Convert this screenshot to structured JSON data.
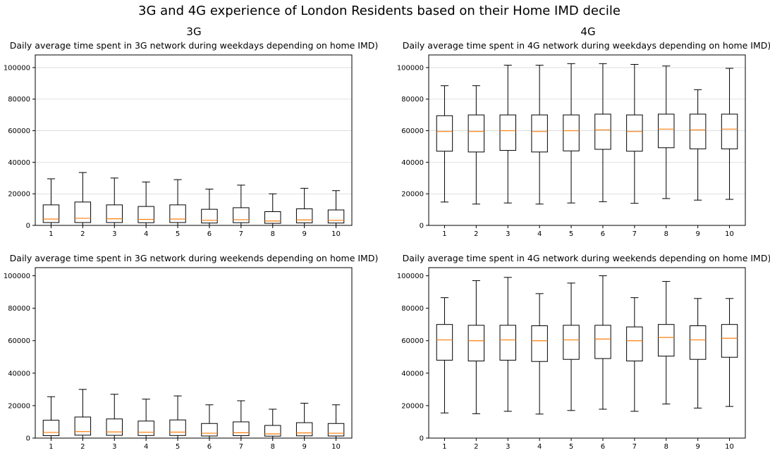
{
  "figure": {
    "suptitle": "3G and 4G experience of London Residents based on their Home IMD decile",
    "column_titles": [
      "3G",
      "4G"
    ]
  },
  "chart_data": [
    {
      "type": "box",
      "title": "Daily average time spent in 3G network during weekdays depending on home IMD)",
      "xlabel": "",
      "ylabel": "",
      "categories": [
        "1",
        "2",
        "3",
        "4",
        "5",
        "6",
        "7",
        "8",
        "9",
        "10"
      ],
      "ylim": [
        0,
        108000
      ],
      "yticks": [
        0,
        20000,
        40000,
        60000,
        80000,
        100000
      ],
      "grid": "y",
      "boxes": [
        {
          "whislo": 0,
          "q1": 1800,
          "med": 4000,
          "q3": 13000,
          "whishi": 29500
        },
        {
          "whislo": 0,
          "q1": 1800,
          "med": 4500,
          "q3": 14800,
          "whishi": 33500
        },
        {
          "whislo": 0,
          "q1": 1800,
          "med": 4200,
          "q3": 13000,
          "whishi": 30000
        },
        {
          "whislo": 0,
          "q1": 1700,
          "med": 3800,
          "q3": 12000,
          "whishi": 27500
        },
        {
          "whislo": 0,
          "q1": 1800,
          "med": 4000,
          "q3": 13000,
          "whishi": 29000
        },
        {
          "whislo": 0,
          "q1": 1500,
          "med": 3200,
          "q3": 10200,
          "whishi": 23000
        },
        {
          "whislo": 0,
          "q1": 1700,
          "med": 3600,
          "q3": 11200,
          "whishi": 25500
        },
        {
          "whislo": 0,
          "q1": 1300,
          "med": 2800,
          "q3": 8700,
          "whishi": 20000
        },
        {
          "whislo": 0,
          "q1": 1600,
          "med": 3500,
          "q3": 10500,
          "whishi": 23500
        },
        {
          "whislo": 0,
          "q1": 1500,
          "med": 3200,
          "q3": 9800,
          "whishi": 22000
        }
      ]
    },
    {
      "type": "box",
      "title": "Daily average time spent in 4G network during weekdays depending on home IMD)",
      "xlabel": "",
      "ylabel": "",
      "categories": [
        "1",
        "2",
        "3",
        "4",
        "5",
        "6",
        "7",
        "8",
        "9",
        "10"
      ],
      "ylim": [
        0,
        108000
      ],
      "yticks": [
        0,
        20000,
        40000,
        60000,
        80000,
        100000
      ],
      "grid": "y",
      "boxes": [
        {
          "whislo": 14800,
          "q1": 47000,
          "med": 59500,
          "q3": 69500,
          "whishi": 88500
        },
        {
          "whislo": 13500,
          "q1": 46500,
          "med": 59500,
          "q3": 70000,
          "whishi": 88500
        },
        {
          "whislo": 14200,
          "q1": 47500,
          "med": 60000,
          "q3": 70000,
          "whishi": 101500
        },
        {
          "whislo": 13500,
          "q1": 46500,
          "med": 59500,
          "q3": 70000,
          "whishi": 101500
        },
        {
          "whislo": 14200,
          "q1": 47200,
          "med": 60000,
          "q3": 70000,
          "whishi": 102500
        },
        {
          "whislo": 15000,
          "q1": 48200,
          "med": 60500,
          "q3": 70500,
          "whishi": 102500
        },
        {
          "whislo": 14000,
          "q1": 47000,
          "med": 59500,
          "q3": 70000,
          "whishi": 102000
        },
        {
          "whislo": 17000,
          "q1": 49200,
          "med": 61000,
          "q3": 70500,
          "whishi": 101000
        },
        {
          "whislo": 16000,
          "q1": 48500,
          "med": 60500,
          "q3": 70500,
          "whishi": 86000
        },
        {
          "whislo": 16500,
          "q1": 48500,
          "med": 61000,
          "q3": 70500,
          "whishi": 99500
        }
      ]
    },
    {
      "type": "box",
      "title": "Daily average time spent in 3G network during weekends depending on home IMD)",
      "xlabel": "",
      "ylabel": "",
      "categories": [
        "1",
        "2",
        "3",
        "4",
        "5",
        "6",
        "7",
        "8",
        "9",
        "10"
      ],
      "ylim": [
        0,
        105000
      ],
      "yticks": [
        0,
        20000,
        40000,
        60000,
        80000,
        100000
      ],
      "grid": "none",
      "boxes": [
        {
          "whislo": 0,
          "q1": 1500,
          "med": 3500,
          "q3": 11000,
          "whishi": 25500
        },
        {
          "whislo": 0,
          "q1": 1800,
          "med": 4000,
          "q3": 13000,
          "whishi": 30000
        },
        {
          "whislo": 0,
          "q1": 1700,
          "med": 3800,
          "q3": 11800,
          "whishi": 27000
        },
        {
          "whislo": 0,
          "q1": 1600,
          "med": 3600,
          "q3": 10500,
          "whishi": 24000
        },
        {
          "whislo": 0,
          "q1": 1600,
          "med": 3700,
          "q3": 11200,
          "whishi": 26000
        },
        {
          "whislo": 0,
          "q1": 1300,
          "med": 3000,
          "q3": 9000,
          "whishi": 20500
        },
        {
          "whislo": 0,
          "q1": 1500,
          "med": 3300,
          "q3": 10000,
          "whishi": 23000
        },
        {
          "whislo": 0,
          "q1": 1200,
          "med": 2600,
          "q3": 7800,
          "whishi": 17800
        },
        {
          "whislo": 0,
          "q1": 1400,
          "med": 3200,
          "q3": 9500,
          "whishi": 21500
        },
        {
          "whislo": 0,
          "q1": 1300,
          "med": 3000,
          "q3": 9000,
          "whishi": 20500
        }
      ]
    },
    {
      "type": "box",
      "title": "Daily average time spent in 4G network during weekends depending on home IMD)",
      "xlabel": "",
      "ylabel": "",
      "categories": [
        "1",
        "2",
        "3",
        "4",
        "5",
        "6",
        "7",
        "8",
        "9",
        "10"
      ],
      "ylim": [
        0,
        105000
      ],
      "yticks": [
        0,
        20000,
        40000,
        60000,
        80000,
        100000
      ],
      "grid": "none",
      "boxes": [
        {
          "whislo": 15500,
          "q1": 48000,
          "med": 60500,
          "q3": 70000,
          "whishi": 86500
        },
        {
          "whislo": 15000,
          "q1": 47500,
          "med": 60000,
          "q3": 69500,
          "whishi": 97000
        },
        {
          "whislo": 16500,
          "q1": 48000,
          "med": 60500,
          "q3": 69500,
          "whishi": 99000
        },
        {
          "whislo": 14800,
          "q1": 47200,
          "med": 60000,
          "q3": 69200,
          "whishi": 89000
        },
        {
          "whislo": 17000,
          "q1": 48500,
          "med": 60500,
          "q3": 69500,
          "whishi": 95500
        },
        {
          "whislo": 17800,
          "q1": 49000,
          "med": 61000,
          "q3": 69500,
          "whishi": 100000
        },
        {
          "whislo": 16500,
          "q1": 47500,
          "med": 60000,
          "q3": 68500,
          "whishi": 86500
        },
        {
          "whislo": 21000,
          "q1": 50500,
          "med": 62000,
          "q3": 70000,
          "whishi": 96500
        },
        {
          "whislo": 18500,
          "q1": 48500,
          "med": 60500,
          "q3": 69200,
          "whishi": 86000
        },
        {
          "whislo": 19500,
          "q1": 49800,
          "med": 61500,
          "q3": 70000,
          "whishi": 86000
        }
      ]
    }
  ],
  "colors": {
    "median": "#ff7f0e",
    "box_edge": "#000000",
    "grid": "#d9d9d9",
    "spine": "#000000"
  }
}
